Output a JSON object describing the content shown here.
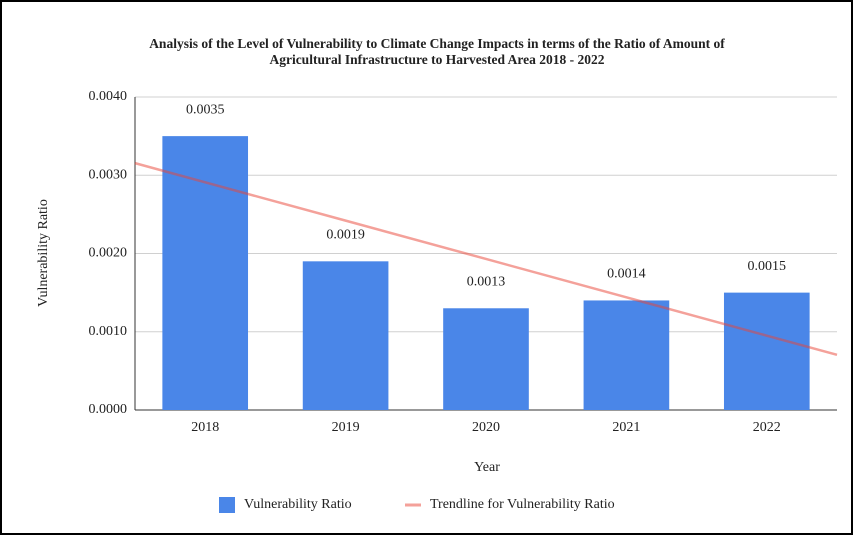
{
  "chart_data": {
    "type": "bar",
    "title": [
      "Analysis of the Level of Vulnerability to Climate Change Impacts in terms of the Ratio of Amount of",
      "Agricultural Infrastructure to Harvested Area 2018 - 2022"
    ],
    "x_label": "Year",
    "y_label": "Vulnerability Ratio",
    "categories": [
      "2018",
      "2019",
      "2020",
      "2021",
      "2022"
    ],
    "series": [
      {
        "name": "Vulnerability Ratio",
        "color": "#4a86e8",
        "values": [
          0.0035,
          0.0019,
          0.0013,
          0.0014,
          0.0015
        ]
      },
      {
        "name": "Trendline for Vulnerability Ratio",
        "color": "#ea4335",
        "type": "line",
        "values": [
          0.00291,
          0.00242,
          0.00193,
          0.00144,
          0.00095
        ]
      }
    ],
    "ylim": [
      0,
      0.004
    ],
    "yticks": [
      {
        "value": 0,
        "label": "0.0000"
      },
      {
        "value": 0.001,
        "label": "0.0010"
      },
      {
        "value": 0.002,
        "label": "0.0020"
      },
      {
        "value": 0.003,
        "label": "0.0030"
      },
      {
        "value": 0.004,
        "label": "0.0040"
      }
    ],
    "grid": true,
    "legend": "bottom"
  }
}
